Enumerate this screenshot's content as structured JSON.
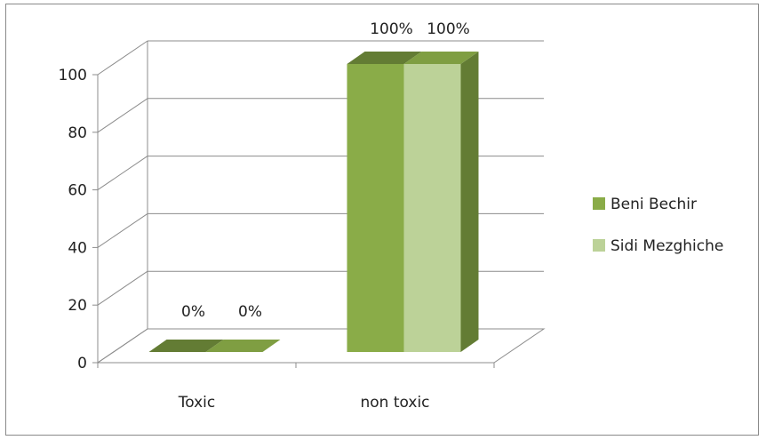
{
  "chart_data": {
    "type": "bar",
    "style": "3d-clustered-column",
    "categories": [
      "Toxic",
      "non toxic"
    ],
    "series": [
      {
        "name": "Beni Bechir",
        "values": [
          0,
          100
        ],
        "labels": [
          "0%",
          "100%"
        ],
        "color": "#8aac48"
      },
      {
        "name": "Sidi Mezghiche",
        "values": [
          0,
          100
        ],
        "labels": [
          "0%",
          "100%"
        ],
        "color": "#bcd298"
      }
    ],
    "yticks": [
      "0",
      "20",
      "40",
      "60",
      "80",
      "100"
    ],
    "ylim": [
      0,
      100
    ],
    "grid": true,
    "legend_position": "right"
  }
}
